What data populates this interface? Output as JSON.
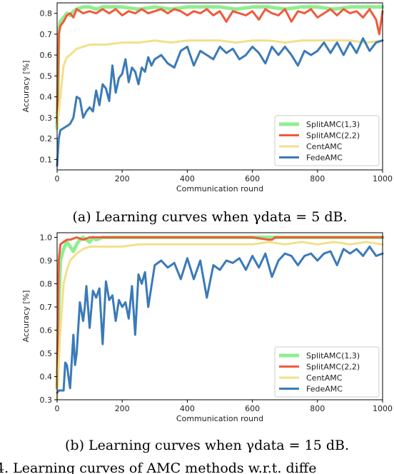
{
  "chart_data": [
    {
      "type": "line",
      "caption": "(a) Learning curves when γdata = 5 dB.",
      "xlabel": "Communication round",
      "ylabel": "Accuracy [%]",
      "xlim": [
        0,
        1000
      ],
      "ylim": [
        0.05,
        0.85
      ],
      "xticks": [
        0,
        200,
        400,
        600,
        800,
        1000
      ],
      "yticks": [
        0.1,
        0.2,
        0.3,
        0.4,
        0.5,
        0.6,
        0.7,
        0.8
      ],
      "legend_position": "lower-right",
      "series": [
        {
          "name": "SplitAMC(1,3)",
          "color": "#90ee90",
          "width": 5,
          "x": [
            0,
            5,
            10,
            20,
            30,
            40,
            50,
            60,
            80,
            100,
            120,
            140,
            160,
            200,
            250,
            300,
            350,
            400,
            450,
            500,
            550,
            600,
            650,
            700,
            750,
            800,
            850,
            900,
            950,
            1000
          ],
          "y": [
            0.25,
            0.72,
            0.76,
            0.78,
            0.8,
            0.79,
            0.81,
            0.82,
            0.83,
            0.83,
            0.82,
            0.83,
            0.83,
            0.83,
            0.82,
            0.83,
            0.82,
            0.83,
            0.83,
            0.83,
            0.82,
            0.83,
            0.83,
            0.82,
            0.83,
            0.83,
            0.82,
            0.83,
            0.83,
            0.83
          ]
        },
        {
          "name": "SplitAMC(2,2)",
          "color": "#f05a3c",
          "width": 3,
          "x": [
            0,
            5,
            10,
            20,
            30,
            40,
            50,
            60,
            80,
            100,
            120,
            140,
            160,
            180,
            200,
            220,
            240,
            260,
            280,
            300,
            320,
            340,
            360,
            380,
            400,
            420,
            440,
            460,
            480,
            500,
            520,
            540,
            560,
            580,
            600,
            620,
            640,
            660,
            680,
            700,
            720,
            740,
            760,
            780,
            800,
            820,
            840,
            860,
            880,
            900,
            920,
            940,
            960,
            980,
            990,
            1000
          ],
          "y": [
            0.25,
            0.7,
            0.74,
            0.76,
            0.79,
            0.8,
            0.78,
            0.82,
            0.8,
            0.81,
            0.8,
            0.82,
            0.8,
            0.82,
            0.79,
            0.81,
            0.8,
            0.82,
            0.8,
            0.81,
            0.82,
            0.8,
            0.82,
            0.81,
            0.79,
            0.81,
            0.8,
            0.82,
            0.79,
            0.81,
            0.76,
            0.81,
            0.8,
            0.79,
            0.81,
            0.77,
            0.82,
            0.8,
            0.79,
            0.82,
            0.76,
            0.81,
            0.8,
            0.82,
            0.78,
            0.8,
            0.82,
            0.79,
            0.82,
            0.8,
            0.81,
            0.78,
            0.82,
            0.77,
            0.7,
            0.81
          ]
        },
        {
          "name": "CentAMC",
          "color": "#f2e08a",
          "width": 3,
          "x": [
            0,
            10,
            20,
            30,
            40,
            60,
            80,
            100,
            150,
            200,
            250,
            300,
            350,
            400,
            450,
            500,
            550,
            600,
            650,
            700,
            750,
            800,
            850,
            900,
            950,
            1000
          ],
          "y": [
            0.25,
            0.4,
            0.55,
            0.59,
            0.6,
            0.63,
            0.64,
            0.65,
            0.65,
            0.66,
            0.66,
            0.67,
            0.66,
            0.67,
            0.67,
            0.67,
            0.66,
            0.67,
            0.67,
            0.66,
            0.67,
            0.67,
            0.67,
            0.67,
            0.66,
            0.67
          ]
        },
        {
          "name": "FedeAMC",
          "color": "#3a7ab8",
          "width": 3,
          "x": [
            0,
            5,
            10,
            20,
            30,
            40,
            50,
            60,
            70,
            80,
            90,
            100,
            110,
            120,
            130,
            140,
            150,
            160,
            170,
            180,
            190,
            200,
            210,
            220,
            230,
            240,
            250,
            260,
            270,
            280,
            290,
            300,
            320,
            340,
            360,
            380,
            400,
            420,
            440,
            460,
            480,
            500,
            520,
            540,
            560,
            580,
            600,
            620,
            640,
            660,
            680,
            700,
            720,
            740,
            760,
            780,
            800,
            820,
            840,
            860,
            880,
            900,
            920,
            940,
            960,
            980,
            1000
          ],
          "y": [
            0.07,
            0.2,
            0.24,
            0.25,
            0.26,
            0.27,
            0.3,
            0.4,
            0.39,
            0.3,
            0.33,
            0.35,
            0.33,
            0.43,
            0.36,
            0.46,
            0.44,
            0.38,
            0.55,
            0.42,
            0.49,
            0.51,
            0.58,
            0.47,
            0.54,
            0.52,
            0.46,
            0.54,
            0.52,
            0.59,
            0.55,
            0.58,
            0.6,
            0.56,
            0.54,
            0.62,
            0.64,
            0.55,
            0.62,
            0.6,
            0.58,
            0.64,
            0.61,
            0.63,
            0.58,
            0.6,
            0.64,
            0.61,
            0.56,
            0.64,
            0.6,
            0.64,
            0.6,
            0.55,
            0.62,
            0.6,
            0.62,
            0.66,
            0.61,
            0.66,
            0.6,
            0.66,
            0.61,
            0.68,
            0.62,
            0.66,
            0.67
          ]
        }
      ]
    },
    {
      "type": "line",
      "caption": "(b) Learning curves when γdata = 15 dB.",
      "xlabel": "Communication round",
      "ylabel": "Accuracy [%]",
      "xlim": [
        0,
        1000
      ],
      "ylim": [
        0.3,
        1.02
      ],
      "xticks": [
        0,
        200,
        400,
        600,
        800,
        1000
      ],
      "yticks": [
        0.3,
        0.4,
        0.5,
        0.6,
        0.7,
        0.8,
        0.9,
        1.0
      ],
      "legend_position": "lower-right",
      "series": [
        {
          "name": "SplitAMC(1,3)",
          "color": "#90ee90",
          "width": 5,
          "x": [
            0,
            5,
            10,
            20,
            30,
            40,
            50,
            60,
            70,
            80,
            100,
            110,
            120,
            140,
            160,
            200,
            300,
            400,
            500,
            600,
            700,
            800,
            900,
            1000
          ],
          "y": [
            0.35,
            0.7,
            0.9,
            0.95,
            0.98,
            0.96,
            0.94,
            0.97,
            0.99,
            1.0,
            0.98,
            1.0,
            0.99,
            1.0,
            1.0,
            1.0,
            1.0,
            1.0,
            1.0,
            1.0,
            1.0,
            1.0,
            1.0,
            1.0
          ]
        },
        {
          "name": "SplitAMC(2,2)",
          "color": "#f05a3c",
          "width": 3,
          "x": [
            0,
            5,
            10,
            20,
            30,
            40,
            60,
            80,
            100,
            200,
            300,
            400,
            500,
            600,
            650,
            660,
            670,
            700,
            800,
            900,
            1000
          ],
          "y": [
            0.35,
            0.9,
            0.97,
            0.98,
            0.99,
            0.99,
            1.0,
            0.99,
            1.0,
            1.0,
            1.0,
            1.0,
            1.0,
            1.0,
            0.99,
            0.99,
            1.0,
            1.0,
            1.0,
            1.0,
            1.0
          ]
        },
        {
          "name": "CentAMC",
          "color": "#f2e08a",
          "width": 3,
          "x": [
            0,
            10,
            20,
            30,
            40,
            60,
            80,
            100,
            150,
            200,
            250,
            300,
            350,
            400,
            450,
            500,
            550,
            600,
            650,
            700,
            750,
            800,
            850,
            900,
            950,
            1000
          ],
          "y": [
            0.3,
            0.6,
            0.8,
            0.86,
            0.9,
            0.93,
            0.95,
            0.96,
            0.96,
            0.96,
            0.97,
            0.97,
            0.97,
            0.97,
            0.97,
            0.97,
            0.97,
            0.97,
            0.98,
            0.97,
            0.98,
            0.97,
            0.98,
            0.97,
            0.98,
            0.97
          ]
        },
        {
          "name": "FedeAMC",
          "color": "#3a7ab8",
          "width": 3,
          "x": [
            0,
            5,
            10,
            20,
            25,
            30,
            40,
            50,
            55,
            60,
            70,
            80,
            85,
            90,
            100,
            110,
            120,
            130,
            140,
            150,
            160,
            170,
            180,
            190,
            200,
            210,
            220,
            230,
            240,
            250,
            260,
            270,
            280,
            290,
            300,
            320,
            340,
            360,
            380,
            400,
            420,
            440,
            460,
            480,
            500,
            520,
            540,
            560,
            580,
            600,
            620,
            640,
            660,
            680,
            700,
            720,
            740,
            760,
            780,
            800,
            820,
            840,
            860,
            880,
            900,
            920,
            940,
            960,
            980,
            1000
          ],
          "y": [
            0.33,
            0.34,
            0.34,
            0.34,
            0.46,
            0.45,
            0.35,
            0.58,
            0.45,
            0.5,
            0.72,
            0.64,
            0.7,
            0.79,
            0.61,
            0.77,
            0.74,
            0.78,
            0.54,
            0.81,
            0.73,
            0.75,
            0.64,
            0.73,
            0.7,
            0.72,
            0.65,
            0.79,
            0.58,
            0.84,
            0.8,
            0.85,
            0.7,
            0.79,
            0.88,
            0.9,
            0.87,
            0.89,
            0.82,
            0.91,
            0.82,
            0.9,
            0.74,
            0.88,
            0.86,
            0.9,
            0.89,
            0.91,
            0.86,
            0.92,
            0.87,
            0.93,
            0.83,
            0.9,
            0.93,
            0.92,
            0.88,
            0.92,
            0.93,
            0.9,
            0.93,
            0.94,
            0.88,
            0.95,
            0.93,
            0.95,
            0.92,
            0.96,
            0.92,
            0.93
          ]
        }
      ]
    }
  ],
  "footer_text": "4. Learning curves of AMC methods w.r.t. diffe"
}
